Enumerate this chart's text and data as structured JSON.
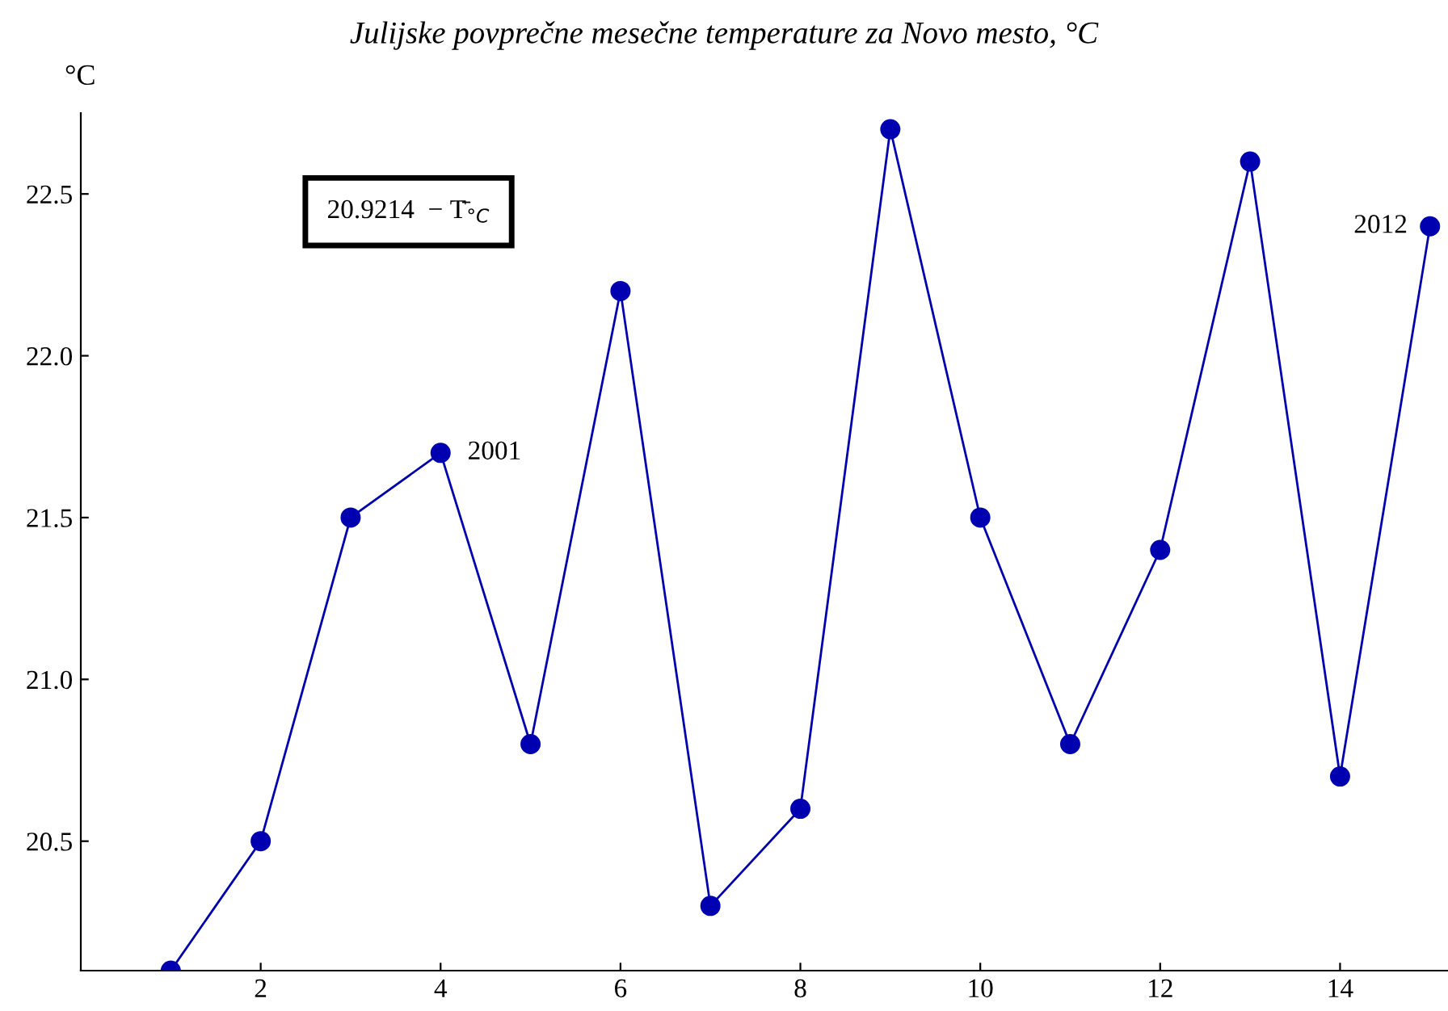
{
  "chart_data": {
    "type": "line",
    "title": "Julijske povprečne mesečne temperature za Novo mesto, °C",
    "ylabel": "°C",
    "x": [
      1,
      2,
      3,
      4,
      5,
      6,
      7,
      8,
      9,
      10,
      11,
      12,
      13,
      14,
      15
    ],
    "series": [
      {
        "color": "#0000b0",
        "values": [
          20.1,
          20.5,
          21.5,
          21.7,
          20.8,
          22.2,
          20.3,
          20.6,
          22.7,
          21.5,
          20.8,
          21.4,
          22.6,
          20.7,
          22.4
        ]
      }
    ],
    "xlim": [
      0,
      15.2
    ],
    "xticks": [
      2,
      4,
      6,
      8,
      10,
      12,
      14
    ],
    "ylim": [
      20.1,
      22.75
    ],
    "yticks": [
      {
        "value": 20.5,
        "label": "20.5"
      },
      {
        "value": 21.0,
        "label": "21.0"
      },
      {
        "value": 21.5,
        "label": "21.5"
      },
      {
        "value": 22.0,
        "label": "22.0"
      },
      {
        "value": 22.5,
        "label": "22.5"
      }
    ],
    "marker": "circle",
    "line_style": "solid",
    "grid": false,
    "legend": false,
    "annotations": [
      "20.9214  − T̄$_{°C}$",
      {
        "text": "2001",
        "x": 4,
        "y": 21.7
      },
      {
        "text": "2012",
        "x": 15,
        "y": 22.4
      }
    ]
  }
}
